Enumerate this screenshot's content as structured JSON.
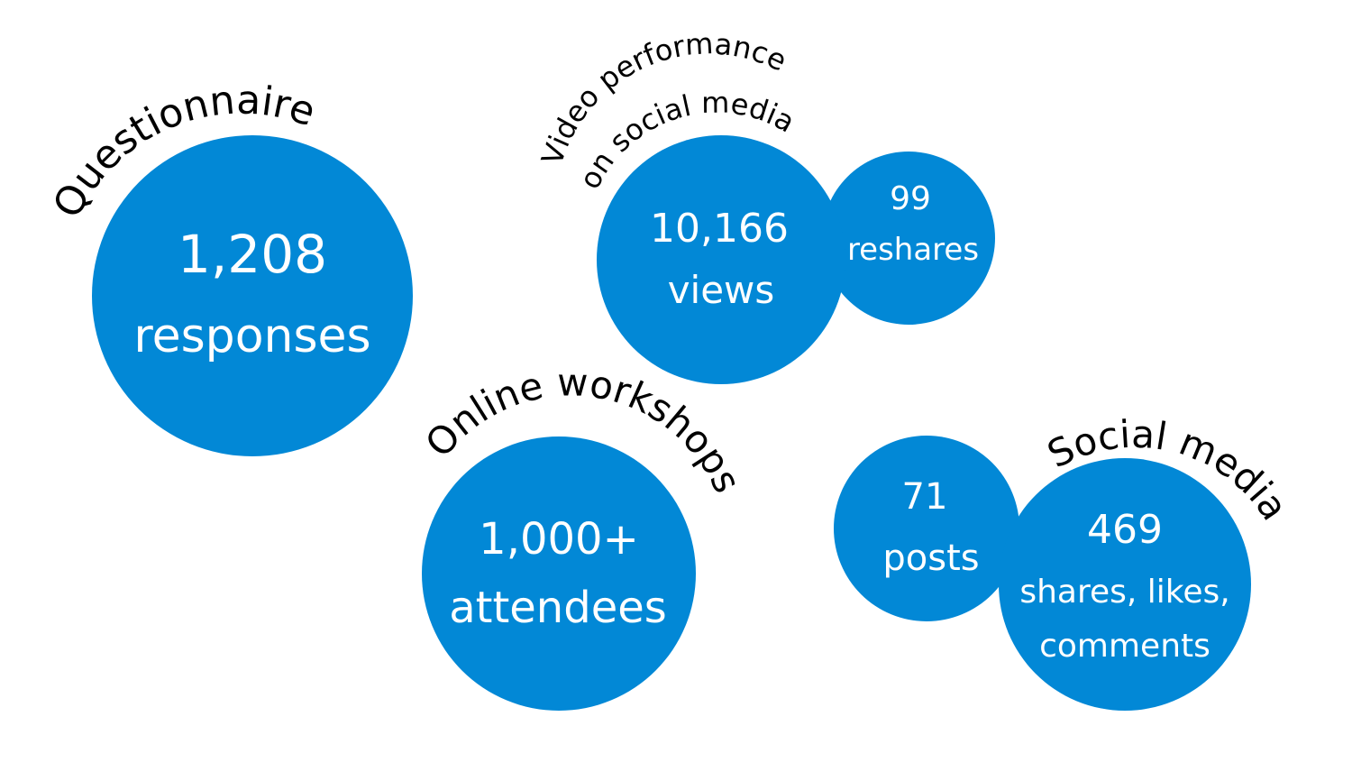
{
  "colors": {
    "bubble": "#0288d6",
    "text_on_bubble": "#ffffff",
    "heading": "#000000"
  },
  "questionnaire": {
    "heading": "Questionnaire",
    "value": "1,208",
    "unit": "responses"
  },
  "video": {
    "heading_line1": "Video performance",
    "heading_line2": "on social media",
    "views_value": "10,166",
    "views_unit": "views",
    "reshares_value": "99",
    "reshares_unit": "reshares"
  },
  "workshops": {
    "heading": "Online workshops",
    "value": "1,000+",
    "unit": "attendees"
  },
  "social": {
    "heading": "Social media",
    "posts_value": "71",
    "posts_unit": "posts",
    "engagement_value": "469",
    "engagement_unit_line1": "shares, likes,",
    "engagement_unit_line2": "comments"
  }
}
